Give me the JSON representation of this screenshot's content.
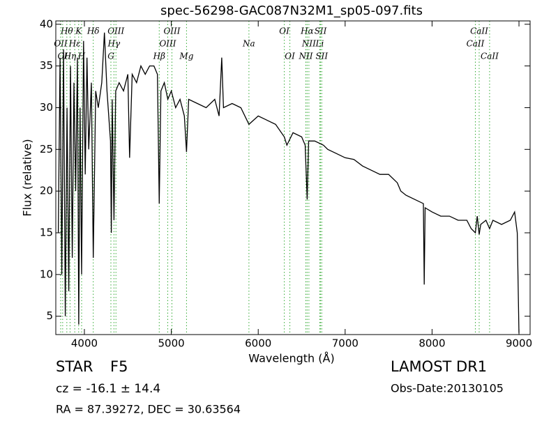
{
  "chart_data": {
    "type": "line",
    "title": "spec-56298-GAC087N32M1_sp05-097.fits",
    "x_label": "Wavelength (Å)",
    "y_label": "Flux (relative)",
    "xlim": [
      3671,
      9128
    ],
    "ylim": [
      2.8,
      40.4
    ],
    "xticks": [
      4000,
      5000,
      6000,
      7000,
      8000,
      9000
    ],
    "yticks": [
      5,
      10,
      15,
      20,
      25,
      30,
      35,
      40
    ],
    "line_color": "#000000",
    "marker_line_color": "#33aa33",
    "x": [
      3700,
      3720,
      3740,
      3760,
      3780,
      3800,
      3820,
      3840,
      3860,
      3880,
      3900,
      3920,
      3935,
      3950,
      3968,
      3990,
      4010,
      4030,
      4050,
      4080,
      4102,
      4130,
      4160,
      4200,
      4230,
      4260,
      4300,
      4310,
      4320,
      4340,
      4360,
      4400,
      4450,
      4500,
      4520,
      4550,
      4600,
      4650,
      4700,
      4750,
      4800,
      4840,
      4861,
      4880,
      4920,
      4960,
      5000,
      5050,
      5100,
      5150,
      5175,
      5200,
      5300,
      5400,
      5500,
      5550,
      5580,
      5600,
      5700,
      5800,
      5893,
      6000,
      6100,
      6200,
      6300,
      6330,
      6400,
      6500,
      6540,
      6563,
      6580,
      6650,
      6750,
      6800,
      6900,
      7000,
      7100,
      7200,
      7300,
      7400,
      7500,
      7600,
      7640,
      7700,
      7800,
      7900,
      7910,
      7920,
      8000,
      8100,
      8200,
      8300,
      8400,
      8450,
      8498,
      8520,
      8542,
      8560,
      8620,
      8662,
      8700,
      8800,
      8900,
      8950,
      8980,
      9000
    ],
    "values": [
      15,
      36,
      10,
      37,
      5,
      30,
      8,
      35,
      12,
      33,
      20,
      36,
      4,
      30,
      10,
      38,
      22,
      36,
      25,
      33,
      12,
      32,
      30,
      33,
      39,
      32,
      26,
      15,
      31,
      16.5,
      32,
      33,
      32,
      34,
      24,
      34,
      33,
      35,
      34,
      35,
      35,
      34,
      18.5,
      32,
      33,
      31,
      32,
      30,
      31,
      29,
      24.7,
      31,
      30.5,
      30,
      31,
      29,
      36,
      30,
      30.5,
      30,
      28,
      29,
      28.5,
      28,
      26.5,
      25.5,
      27,
      26.5,
      25.5,
      19,
      26,
      26,
      25.5,
      25,
      24.5,
      24,
      23.8,
      23,
      22.5,
      22,
      22,
      21,
      20,
      19.5,
      19,
      18.5,
      8.8,
      18,
      17.5,
      17,
      17,
      16.5,
      16.5,
      15.5,
      15,
      17,
      14.8,
      16,
      16.5,
      15.5,
      16.5,
      16,
      16.5,
      17.5,
      15,
      3
    ],
    "spectral_lines": [
      {
        "label": "Hθ",
        "wavelength": 3798
      },
      {
        "label": "K",
        "wavelength": 3934
      },
      {
        "label": "Hδ",
        "wavelength": 4102
      },
      {
        "label": "OIII",
        "wavelength": 4363
      },
      {
        "label": "OIII",
        "wavelength": 5007
      },
      {
        "label": "OI",
        "wavelength": 6300
      },
      {
        "label": "Hα",
        "wavelength": 6563
      },
      {
        "label": "SII",
        "wavelength": 6717
      },
      {
        "label": "CaII",
        "wavelength": 8542
      },
      {
        "label": "OII",
        "wavelength": 3727
      },
      {
        "label": "Hε",
        "wavelength": 3889
      },
      {
        "label": "Hγ",
        "wavelength": 4340
      },
      {
        "label": "OIII",
        "wavelength": 4959
      },
      {
        "label": "NII",
        "wavelength": 6583
      },
      {
        "label": "Li",
        "wavelength": 6708
      },
      {
        "label": "CaII",
        "wavelength": 8498
      },
      {
        "label": "Na",
        "wavelength": 5893
      },
      {
        "label": "OI",
        "wavelength": 3750
      },
      {
        "label": "Hη",
        "wavelength": 3835
      },
      {
        "label": "H",
        "wavelength": 3968
      },
      {
        "label": "G",
        "wavelength": 4305
      },
      {
        "label": "Hβ",
        "wavelength": 4861
      },
      {
        "label": "Mg",
        "wavelength": 5175
      },
      {
        "label": "OI",
        "wavelength": 6364
      },
      {
        "label": "NII",
        "wavelength": 6548
      },
      {
        "label": "SII",
        "wavelength": 6731
      },
      {
        "label": "CaII",
        "wavelength": 8662
      }
    ]
  },
  "info": {
    "object_class": "STAR",
    "subclass": "F5",
    "redshift": "cz = -16.1 ± 14.4",
    "coordinates": "RA = 87.39272, DEC = 30.63564",
    "survey": "LAMOST DR1",
    "obs_date": "Obs-Date:20130105"
  }
}
